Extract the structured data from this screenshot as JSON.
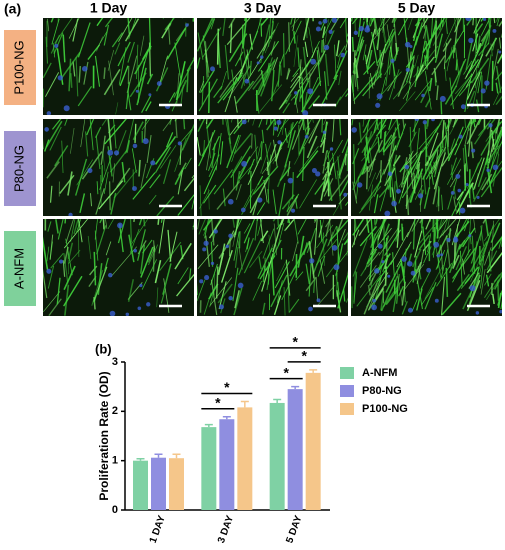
{
  "panel_a": {
    "label": "(a)",
    "columns": [
      "1 Day",
      "3 Day",
      "5 Day"
    ],
    "rows": [
      "P100-NG",
      "P80-NG",
      "A-NFM"
    ]
  },
  "chart_data": {
    "type": "bar",
    "label": "(b)",
    "y_label": "Proliferation Rate (OD)",
    "categories": [
      "1 DAY",
      "3 DAY",
      "5 DAY"
    ],
    "series": [
      {
        "name": "A-NFM",
        "color": "#7fd1a4",
        "values": [
          1.0,
          1.68,
          2.17
        ],
        "errors": [
          0.04,
          0.05,
          0.07
        ]
      },
      {
        "name": "P80-NG",
        "color": "#8f8ee0",
        "values": [
          1.06,
          1.84,
          2.45
        ],
        "errors": [
          0.07,
          0.05,
          0.05
        ]
      },
      {
        "name": "P100-NG",
        "color": "#f5c68a",
        "values": [
          1.05,
          2.08,
          2.78
        ],
        "errors": [
          0.08,
          0.12,
          0.06
        ]
      }
    ],
    "ylim": [
      0,
      3
    ],
    "yticks": [
      0,
      1,
      2,
      3
    ],
    "significance": [
      {
        "category": "3 DAY",
        "between": [
          "A-NFM",
          "P80-NG"
        ],
        "label": "*"
      },
      {
        "category": "3 DAY",
        "between": [
          "A-NFM",
          "P100-NG"
        ],
        "label": "*"
      },
      {
        "category": "5 DAY",
        "between": [
          "A-NFM",
          "P80-NG"
        ],
        "label": "*"
      },
      {
        "category": "5 DAY",
        "between": [
          "P80-NG",
          "P100-NG"
        ],
        "label": "*"
      },
      {
        "category": "5 DAY",
        "between": [
          "A-NFM",
          "P100-NG"
        ],
        "label": "*"
      }
    ]
  }
}
